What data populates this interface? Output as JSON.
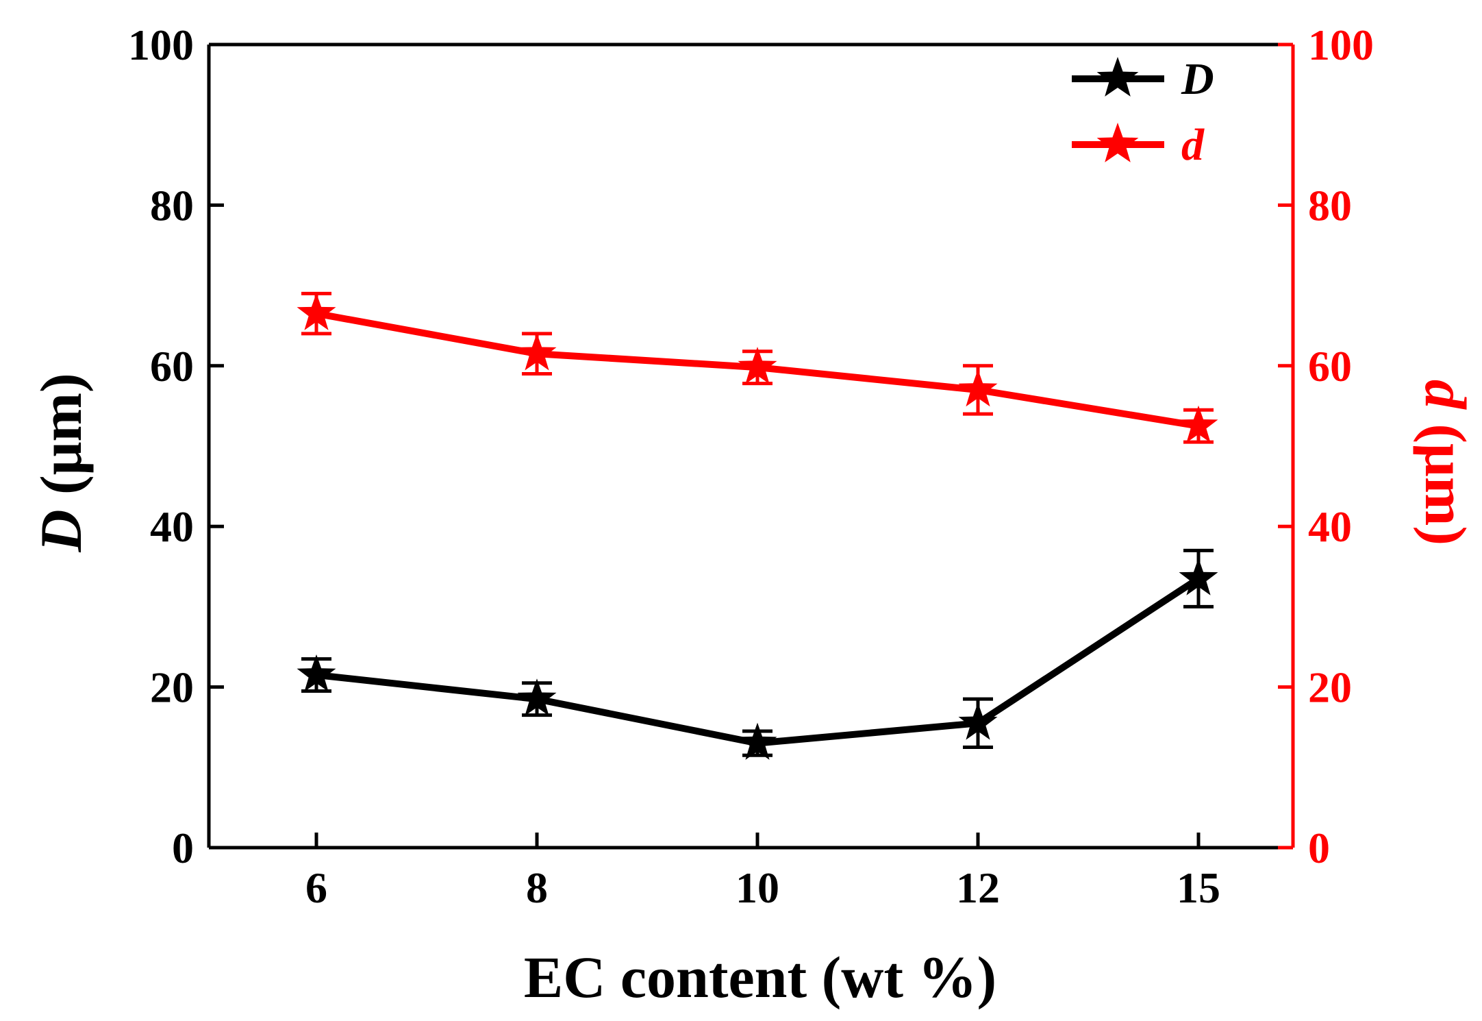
{
  "chart_data": {
    "type": "line",
    "categories": [
      "6",
      "8",
      "10",
      "12",
      "15"
    ],
    "xlabel": "EC content (wt %)",
    "ylabel_left": {
      "italic": "D",
      "rest": " (μm)"
    },
    "ylabel_right": {
      "italic": "d",
      "rest": " (μm)"
    },
    "ylim": [
      0,
      100
    ],
    "yticks": [
      0,
      20,
      40,
      60,
      80,
      100
    ],
    "grid": false,
    "legend_position": "top-right",
    "series": [
      {
        "name": "D",
        "axis": "left",
        "color": "#000000",
        "marker": "star",
        "values": [
          21.5,
          18.5,
          13.0,
          15.5,
          33.5
        ],
        "errors": [
          2.0,
          2.0,
          1.5,
          3.0,
          3.5
        ]
      },
      {
        "name": "d",
        "axis": "right",
        "color": "#ff0000",
        "marker": "star",
        "values": [
          66.5,
          61.5,
          59.8,
          57.0,
          52.5
        ],
        "errors": [
          2.5,
          2.5,
          2.0,
          3.0,
          2.0
        ]
      }
    ]
  }
}
